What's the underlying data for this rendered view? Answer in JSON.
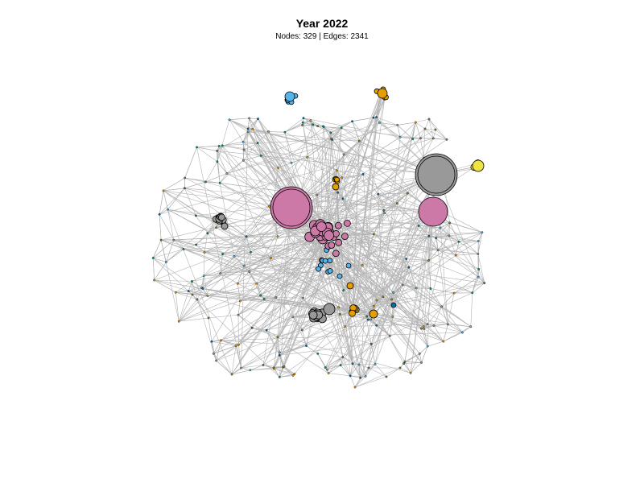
{
  "header": {
    "title": "Year 2022",
    "subtitle": "Nodes: 329 | Edges: 2341"
  },
  "colors": {
    "edge": "#b3b3b3",
    "node_stroke": "#000000",
    "pink": "#cc79a7",
    "gray": "#999999",
    "blue": "#56b4e9",
    "orange": "#e69f00",
    "yellow": "#f0e442",
    "teal": "#009e73",
    "navy": "#0072b2",
    "olive": "#8a8a3a"
  },
  "graph": {
    "nodes": 329,
    "edges": 2341
  }
}
